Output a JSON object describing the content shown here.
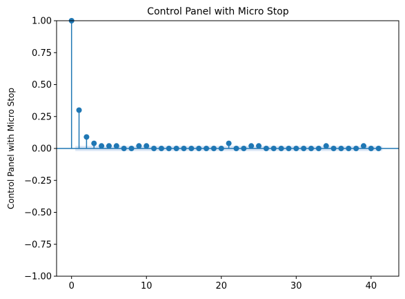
{
  "chart_data": {
    "type": "stem",
    "title": "Control Panel with Micro Stop",
    "xlabel": "",
    "ylabel": "Control Panel with Micro Stop",
    "xlim": [
      -2,
      43.7
    ],
    "ylim": [
      -1.0,
      1.0
    ],
    "x_ticks": [
      0,
      10,
      20,
      30,
      40
    ],
    "y_ticks": [
      1.0,
      0.75,
      0.5,
      0.25,
      0.0,
      -0.25,
      -0.5,
      -0.75,
      -1.0
    ],
    "y_tick_labels": [
      "1.00",
      "0.75",
      "0.50",
      "0.25",
      "0.00",
      "−0.25",
      "−0.50",
      "−0.75",
      "−1.00"
    ],
    "grid": false,
    "colors": {
      "stem": "#1f77b4",
      "band": "#aec7e8",
      "axis": "#000000"
    },
    "confidence_band": {
      "lag_start": 1,
      "lag_end": 41,
      "upper": 0.02,
      "lower": -0.02
    },
    "lags": [
      0,
      1,
      2,
      3,
      4,
      5,
      6,
      7,
      8,
      9,
      10,
      11,
      12,
      13,
      14,
      15,
      16,
      17,
      18,
      19,
      20,
      21,
      22,
      23,
      24,
      25,
      26,
      27,
      28,
      29,
      30,
      31,
      32,
      33,
      34,
      35,
      36,
      37,
      38,
      39,
      40,
      41
    ],
    "values": [
      1.0,
      0.3,
      0.09,
      0.04,
      0.02,
      0.02,
      0.02,
      0.0,
      0.0,
      0.02,
      0.02,
      0.0,
      0.0,
      0.0,
      0.0,
      0.0,
      0.0,
      0.0,
      0.0,
      0.0,
      0.0,
      0.04,
      0.0,
      0.0,
      0.02,
      0.02,
      0.0,
      0.0,
      0.0,
      0.0,
      0.0,
      0.0,
      0.0,
      0.0,
      0.02,
      0.0,
      0.0,
      0.0,
      0.0,
      0.02,
      0.0,
      0.0
    ]
  }
}
